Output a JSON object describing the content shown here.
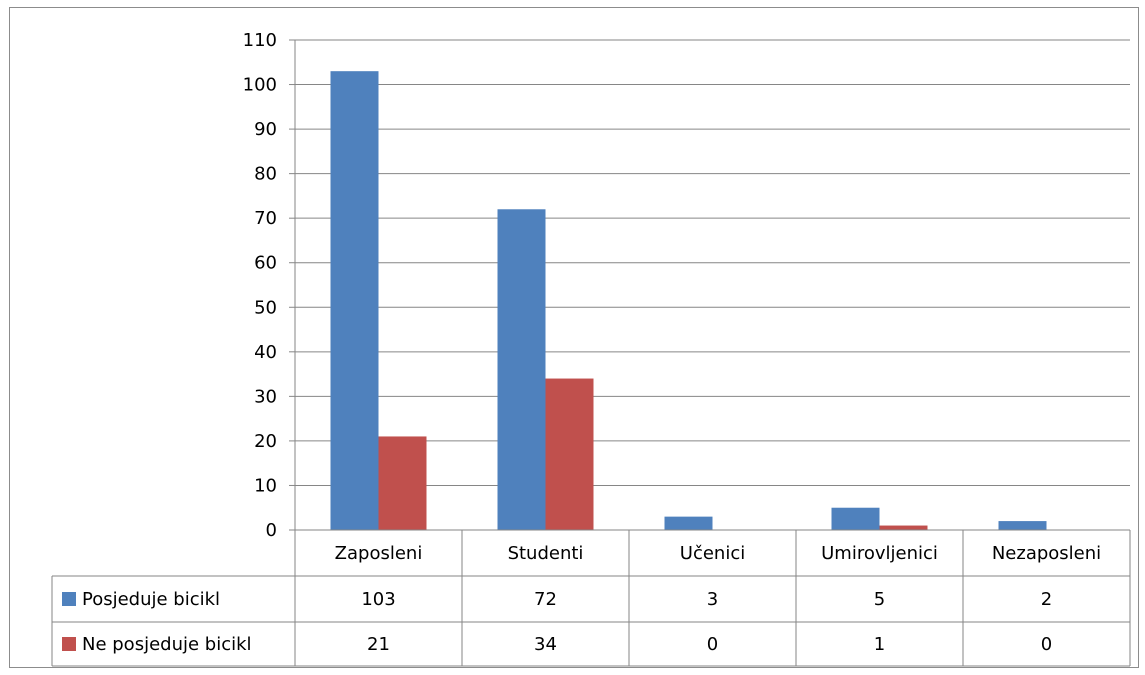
{
  "chart_data": {
    "type": "bar",
    "categories": [
      "Zaposleni",
      "Studenti",
      "Učenici",
      "Umirovljenici",
      "Nezaposleni"
    ],
    "series": [
      {
        "name": "Posjeduje bicikl",
        "values": [
          103,
          72,
          3,
          5,
          2
        ],
        "color": "#4f81bd"
      },
      {
        "name": "Ne posjeduje bicikl",
        "values": [
          21,
          34,
          0,
          1,
          0
        ],
        "color": "#c0504d"
      }
    ],
    "ylim": [
      0,
      110
    ],
    "yticks": [
      "0",
      "10",
      "20",
      "30",
      "40",
      "50",
      "60",
      "70",
      "80",
      "90",
      "100",
      "110"
    ],
    "grid": true,
    "legend": "data-table-left",
    "data_table": true
  }
}
